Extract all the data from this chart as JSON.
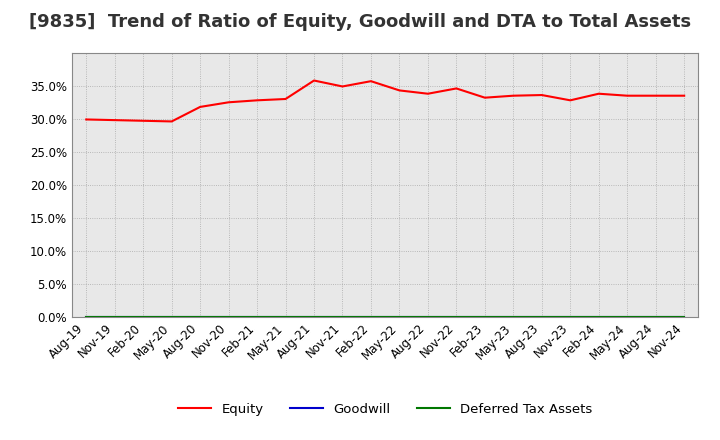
{
  "title": "[9835]  Trend of Ratio of Equity, Goodwill and DTA to Total Assets",
  "x_labels": [
    "Aug-19",
    "Nov-19",
    "Feb-20",
    "May-20",
    "Aug-20",
    "Nov-20",
    "Feb-21",
    "May-21",
    "Aug-21",
    "Nov-21",
    "Feb-22",
    "May-22",
    "Aug-22",
    "Nov-22",
    "Feb-23",
    "May-23",
    "Aug-23",
    "Nov-23",
    "Feb-24",
    "May-24",
    "Aug-24",
    "Nov-24"
  ],
  "equity": [
    29.9,
    29.8,
    29.7,
    29.6,
    31.8,
    32.5,
    32.8,
    33.0,
    35.8,
    34.9,
    35.7,
    34.3,
    33.8,
    34.6,
    33.2,
    33.5,
    33.6,
    32.8,
    33.8,
    33.5,
    33.5,
    33.5
  ],
  "goodwill": [
    0,
    0,
    0,
    0,
    0,
    0,
    0,
    0,
    0,
    0,
    0,
    0,
    0,
    0,
    0,
    0,
    0,
    0,
    0,
    0,
    0,
    0
  ],
  "dta": [
    0,
    0,
    0,
    0,
    0,
    0,
    0,
    0,
    0,
    0,
    0,
    0,
    0,
    0,
    0,
    0,
    0,
    0,
    0,
    0,
    0,
    0
  ],
  "equity_color": "#ff0000",
  "goodwill_color": "#0000cc",
  "dta_color": "#007700",
  "background_color": "#ffffff",
  "plot_bg_color": "#e8e8e8",
  "grid_color": "#999999",
  "ylim": [
    0,
    40
  ],
  "yticks": [
    0.0,
    5.0,
    10.0,
    15.0,
    20.0,
    25.0,
    30.0,
    35.0
  ],
  "legend_labels": [
    "Equity",
    "Goodwill",
    "Deferred Tax Assets"
  ],
  "title_fontsize": 13,
  "axis_fontsize": 8.5
}
